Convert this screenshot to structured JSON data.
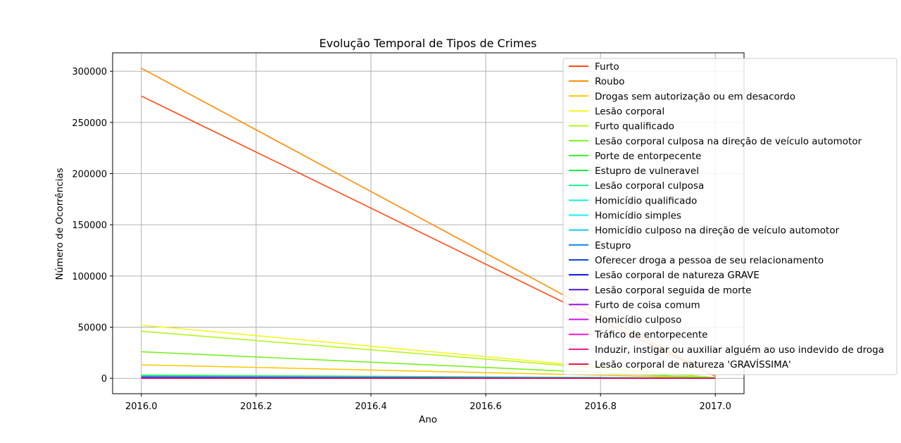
{
  "chart_data": {
    "type": "line",
    "title": "Evolução Temporal de Tipos de Crimes",
    "xlabel": "Ano",
    "ylabel": "Número de Ocorrências",
    "x": [
      2016,
      2017
    ],
    "xlim": [
      2015.95,
      2017.05
    ],
    "ylim": [
      -15000,
      318000
    ],
    "xticks": [
      "2016.0",
      "2016.2",
      "2016.4",
      "2016.6",
      "2016.8",
      "2017.0"
    ],
    "yticks": [
      "0",
      "50000",
      "100000",
      "150000",
      "200000",
      "250000",
      "300000"
    ],
    "grid": true,
    "legend_position": "upper-right",
    "series": [
      {
        "name": "Furto",
        "color": "#ff4a14",
        "values": [
          275800,
          2000
        ]
      },
      {
        "name": "Roubo",
        "color": "#ff8a00",
        "values": [
          303000,
          1800
        ]
      },
      {
        "name": "Drogas sem autorização ou em desacordo",
        "color": "#ffc800",
        "values": [
          13200,
          500
        ]
      },
      {
        "name": "Lesão corporal",
        "color": "#f5f51e",
        "values": [
          52000,
          600
        ]
      },
      {
        "name": "Furto qualificado",
        "color": "#b4f51e",
        "values": [
          46000,
          700
        ]
      },
      {
        "name": "Lesão corporal culposa na direção de veículo automotor",
        "color": "#78f01e",
        "values": [
          26000,
          400
        ]
      },
      {
        "name": "Porte de entorpecente",
        "color": "#3cf028",
        "values": [
          3200,
          200
        ]
      },
      {
        "name": "Estupro de vulneravel",
        "color": "#14f04a",
        "values": [
          2600,
          150
        ]
      },
      {
        "name": "Lesão corporal culposa",
        "color": "#14f08c",
        "values": [
          2300,
          100
        ]
      },
      {
        "name": "Homicídio qualificado",
        "color": "#14f0d2",
        "values": [
          2000,
          100
        ]
      },
      {
        "name": "Homicídio simples",
        "color": "#14f0f0",
        "values": [
          2200,
          100
        ]
      },
      {
        "name": "Homicídio culposo na direção de veículo automotor",
        "color": "#14c8f0",
        "values": [
          1700,
          80
        ]
      },
      {
        "name": "Estupro",
        "color": "#1482f0",
        "values": [
          1300,
          60
        ]
      },
      {
        "name": "Oferecer droga a pessoa de seu relacionamento",
        "color": "#1446dc",
        "values": [
          900,
          40
        ]
      },
      {
        "name": "Lesão corporal de natureza GRAVE",
        "color": "#0a14f0",
        "values": [
          700,
          30
        ]
      },
      {
        "name": "Lesão corporal seguida de morte",
        "color": "#5014dc",
        "values": [
          500,
          20
        ]
      },
      {
        "name": "Furto de coisa comum",
        "color": "#8c14f0",
        "values": [
          300,
          15
        ]
      },
      {
        "name": "Homicídio culposo",
        "color": "#c814e6",
        "values": [
          200,
          10
        ]
      },
      {
        "name": "Tráfico de entorpecente",
        "color": "#f014d2",
        "values": [
          150,
          8
        ]
      },
      {
        "name": "Induzir, instigar ou auxiliar alguém ao uso indevido de droga",
        "color": "#f0148c",
        "values": [
          100,
          5
        ]
      },
      {
        "name": "Lesão corporal  de natureza 'GRAVÍSSIMA'",
        "color": "#f0145a",
        "values": [
          50,
          3
        ]
      }
    ]
  }
}
